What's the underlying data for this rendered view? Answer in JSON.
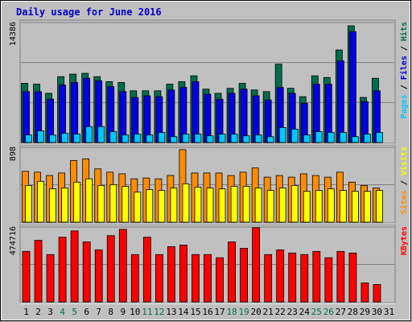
{
  "chart_data": {
    "type": "bar",
    "title": "Daily usage for June 2016",
    "colors": {
      "background": "#c0c0c0",
      "title": "#0000cc",
      "hits": "#006e4e",
      "files": "#0000e0",
      "pages": "#00c8ff",
      "visits": "#ffff00",
      "sites": "#ff8c00",
      "kbytes": "#ff0000",
      "weekend_label": "#006e4e",
      "grid": "#808080"
    },
    "categories": [
      "1",
      "2",
      "3",
      "4",
      "5",
      "6",
      "7",
      "8",
      "9",
      "10",
      "11",
      "12",
      "13",
      "14",
      "15",
      "16",
      "17",
      "18",
      "19",
      "20",
      "21",
      "22",
      "23",
      "24",
      "25",
      "26",
      "27",
      "28",
      "29",
      "30",
      "31"
    ],
    "weekend_days": [
      "4",
      "5",
      "11",
      "12",
      "18",
      "19",
      "25",
      "26"
    ],
    "panels": [
      {
        "id": "hits-files-pages",
        "ylim": [
          0,
          14386
        ],
        "ytick_label": "14386",
        "legend": [
          {
            "text": "Pages",
            "color": "#00c8ff"
          },
          {
            "text": " / ",
            "color": "#000000"
          },
          {
            "text": "Files",
            "color": "#0000e0"
          },
          {
            "text": " / ",
            "color": "#000000"
          },
          {
            "text": "Hits",
            "color": "#006e4e"
          }
        ],
        "series": [
          {
            "name": "Hits",
            "color": "#006e4e",
            "values": [
              7100,
              7000,
              5900,
              7900,
              8200,
              8300,
              7900,
              7300,
              7200,
              6200,
              6200,
              6200,
              7000,
              7300,
              8000,
              6400,
              5900,
              6500,
              7100,
              6300,
              6100,
              9400,
              6500,
              5500,
              8000,
              7800,
              11100,
              14000,
              5400,
              7700,
              null
            ]
          },
          {
            "name": "Files",
            "color": "#0000e0",
            "values": [
              6100,
              6100,
              5200,
              6900,
              7200,
              7700,
              7400,
              6700,
              6100,
              5400,
              5600,
              5500,
              6300,
              6600,
              7300,
              5800,
              5200,
              5900,
              6400,
              5600,
              5100,
              6600,
              5900,
              4700,
              7000,
              7000,
              9800,
              13300,
              4900,
              6200,
              null
            ]
          },
          {
            "name": "Pages",
            "color": "#00c8ff",
            "values": [
              900,
              1400,
              900,
              1100,
              1000,
              1900,
              1900,
              1300,
              900,
              1000,
              900,
              1200,
              700,
              1000,
              1000,
              800,
              1000,
              1000,
              800,
              900,
              700,
              1800,
              1600,
              900,
              1300,
              1200,
              1200,
              700,
              1000,
              1200,
              null
            ]
          }
        ]
      },
      {
        "id": "visits-sites",
        "ylim": [
          0,
          898
        ],
        "ytick_label": "898",
        "legend": [
          {
            "text": "Sites",
            "color": "#ff8c00"
          },
          {
            "text": " / ",
            "color": "#000000"
          },
          {
            "text": "Visits",
            "color": "#ffff00"
          }
        ],
        "series": [
          {
            "name": "Sites",
            "color": "#ff8c00",
            "values": [
              610,
              600,
              560,
              590,
              740,
              760,
              640,
              600,
              580,
              520,
              530,
              520,
              560,
              870,
              590,
              590,
              590,
              560,
              600,
              650,
              540,
              560,
              540,
              580,
              560,
              540,
              600,
              480,
              440,
              410,
              null
            ]
          },
          {
            "name": "Visits",
            "color": "#ffff00",
            "values": [
              440,
              490,
              400,
              410,
              480,
              520,
              440,
              450,
              430,
              360,
              390,
              380,
              410,
              460,
              420,
              410,
              400,
              430,
              430,
              410,
              380,
              410,
              440,
              370,
              380,
              400,
              380,
              370,
              370,
              380,
              null
            ]
          }
        ]
      },
      {
        "id": "kbytes",
        "ylim": [
          0,
          474716
        ],
        "ytick_label": "474716",
        "legend": [
          {
            "text": "KBytes",
            "color": "#ff0000"
          }
        ],
        "series": [
          {
            "name": "KBytes",
            "color": "#ff0000",
            "values": [
              320000,
              390000,
              300000,
              410000,
              450000,
              380000,
              330000,
              420000,
              460000,
              300000,
              410000,
              300000,
              350000,
              360000,
              300000,
              300000,
              280000,
              380000,
              340000,
              470000,
              300000,
              330000,
              310000,
              300000,
              320000,
              280000,
              320000,
              310000,
              120000,
              110000,
              null
            ]
          }
        ]
      }
    ]
  }
}
